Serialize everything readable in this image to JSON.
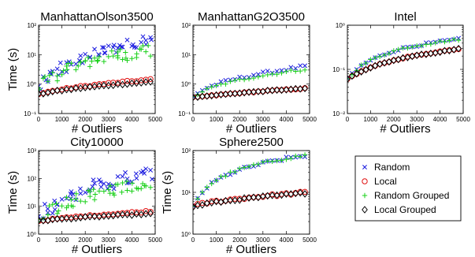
{
  "colors": {
    "Random": "#1a1adf",
    "Local": "#e01010",
    "Random Grouped": "#19d019",
    "Local Grouped": "#000000"
  },
  "legend": {
    "items": [
      {
        "label": "Random",
        "marker": "x"
      },
      {
        "label": "Local",
        "marker": "o"
      },
      {
        "label": "Random Grouped",
        "marker": "+"
      },
      {
        "label": "Local Grouped",
        "marker": "d"
      }
    ]
  },
  "chart_data": [
    {
      "type": "scatter",
      "title": "ManhattanOlson3500",
      "xlabel": "# Outliers",
      "ylabel": "Time (s)",
      "xlim": [
        0,
        5000
      ],
      "ylim": [
        0.1,
        100
      ],
      "yscale": "log",
      "xticks": [
        "0",
        "1000",
        "2000",
        "3000",
        "4000",
        "5000"
      ],
      "yticks": [
        {
          "v": 0.1,
          "label": "10⁻¹"
        },
        {
          "v": 1,
          "label": "10⁰"
        },
        {
          "v": 10,
          "label": "10¹"
        },
        {
          "v": 100,
          "label": "10²"
        }
      ],
      "x": [
        0,
        200,
        400,
        600,
        800,
        1000,
        1200,
        1400,
        1600,
        1800,
        2000,
        2200,
        2400,
        2600,
        2800,
        3000,
        3200,
        3400,
        3600,
        3800,
        4000,
        4200,
        4400,
        4600,
        4800
      ],
      "series": [
        {
          "name": "Random",
          "marker": "x",
          "values": [
            0.75,
            1.2,
            1.6,
            2.1,
            2.6,
            3.3,
            4.0,
            4.8,
            5.8,
            6.8,
            8.0,
            9.2,
            10.5,
            12,
            13.5,
            15,
            16.5,
            18,
            20,
            22,
            24,
            26,
            28,
            31,
            35
          ],
          "spread": 0.35
        },
        {
          "name": "Local",
          "marker": "o",
          "values": [
            0.45,
            0.5,
            0.55,
            0.58,
            0.62,
            0.66,
            0.7,
            0.74,
            0.78,
            0.82,
            0.86,
            0.9,
            0.94,
            0.98,
            1.02,
            1.06,
            1.1,
            1.14,
            1.18,
            1.22,
            1.26,
            1.3,
            1.34,
            1.38,
            1.42
          ],
          "spread": 0.05
        },
        {
          "name": "Random Grouped",
          "marker": "+",
          "values": [
            0.7,
            1.0,
            1.3,
            1.7,
            2.1,
            2.5,
            3.0,
            3.5,
            4.0,
            4.6,
            5.2,
            5.8,
            6.4,
            7.0,
            7.6,
            8.2,
            8.8,
            9.4,
            10,
            10.6,
            11.2,
            11.8,
            12.4,
            13,
            13.6
          ],
          "spread": 0.45
        },
        {
          "name": "Local Grouped",
          "marker": "d",
          "values": [
            0.45,
            0.48,
            0.52,
            0.55,
            0.58,
            0.61,
            0.64,
            0.67,
            0.7,
            0.73,
            0.76,
            0.79,
            0.82,
            0.85,
            0.88,
            0.91,
            0.94,
            0.97,
            1.0,
            1.03,
            1.06,
            1.09,
            1.12,
            1.15,
            1.18
          ],
          "spread": 0.04
        }
      ]
    },
    {
      "type": "scatter",
      "title": "ManhattanG2O3500",
      "xlabel": "# Outliers",
      "ylabel": "",
      "xlim": [
        0,
        5000
      ],
      "ylim": [
        0.1,
        100
      ],
      "yscale": "log",
      "xticks": [
        "0",
        "1000",
        "2000",
        "3000",
        "4000",
        "5000"
      ],
      "yticks": [
        {
          "v": 0.1,
          "label": "10⁻¹"
        },
        {
          "v": 1,
          "label": "10⁰"
        },
        {
          "v": 10,
          "label": "10¹"
        },
        {
          "v": 100,
          "label": "10²"
        }
      ],
      "x": [
        0,
        200,
        400,
        600,
        800,
        1000,
        1200,
        1400,
        1600,
        1800,
        2000,
        2200,
        2400,
        2600,
        2800,
        3000,
        3200,
        3400,
        3600,
        3800,
        4000,
        4200,
        4400,
        4600,
        4800
      ],
      "series": [
        {
          "name": "Random",
          "marker": "x",
          "values": [
            0.38,
            0.5,
            0.62,
            0.74,
            0.86,
            0.98,
            1.1,
            1.22,
            1.35,
            1.48,
            1.6,
            1.75,
            1.9,
            2.05,
            2.2,
            2.35,
            2.5,
            2.65,
            2.8,
            3.0,
            3.2,
            3.4,
            3.6,
            3.8,
            4.0
          ],
          "spread": 0.1
        },
        {
          "name": "Local",
          "marker": "o",
          "values": [
            0.35,
            0.36,
            0.38,
            0.39,
            0.41,
            0.42,
            0.44,
            0.45,
            0.47,
            0.48,
            0.5,
            0.51,
            0.53,
            0.54,
            0.56,
            0.57,
            0.59,
            0.6,
            0.62,
            0.63,
            0.65,
            0.66,
            0.68,
            0.69,
            0.71
          ],
          "spread": 0.03
        },
        {
          "name": "Random Grouped",
          "marker": "+",
          "values": [
            0.36,
            0.46,
            0.56,
            0.66,
            0.76,
            0.86,
            0.96,
            1.06,
            1.16,
            1.27,
            1.38,
            1.49,
            1.6,
            1.72,
            1.84,
            1.96,
            2.08,
            2.2,
            2.33,
            2.46,
            2.6,
            2.74,
            2.88,
            3.02,
            3.16
          ],
          "spread": 0.08
        },
        {
          "name": "Local Grouped",
          "marker": "d",
          "values": [
            0.35,
            0.36,
            0.38,
            0.39,
            0.41,
            0.42,
            0.44,
            0.45,
            0.47,
            0.48,
            0.5,
            0.51,
            0.53,
            0.54,
            0.56,
            0.57,
            0.59,
            0.6,
            0.62,
            0.63,
            0.65,
            0.66,
            0.68,
            0.69,
            0.71
          ],
          "spread": 0.02
        }
      ]
    },
    {
      "type": "scatter",
      "title": "Intel",
      "xlabel": "# Outliers",
      "ylabel": "",
      "xlim": [
        0,
        5000
      ],
      "ylim": [
        0.01,
        1
      ],
      "yscale": "log",
      "xticks": [
        "0",
        "1000",
        "2000",
        "3000",
        "4000",
        "5000"
      ],
      "yticks": [
        {
          "v": 0.01,
          "label": "10⁻²"
        },
        {
          "v": 0.1,
          "label": "10⁻¹"
        },
        {
          "v": 1,
          "label": "10⁰"
        }
      ],
      "x": [
        0,
        200,
        400,
        600,
        800,
        1000,
        1200,
        1400,
        1600,
        1800,
        2000,
        2200,
        2400,
        2600,
        2800,
        3000,
        3200,
        3400,
        3600,
        3800,
        4000,
        4200,
        4400,
        4600,
        4800
      ],
      "series": [
        {
          "name": "Random",
          "marker": "x",
          "values": [
            0.06,
            0.08,
            0.1,
            0.12,
            0.14,
            0.16,
            0.18,
            0.2,
            0.22,
            0.24,
            0.26,
            0.28,
            0.3,
            0.32,
            0.33,
            0.35,
            0.36,
            0.38,
            0.39,
            0.41,
            0.42,
            0.44,
            0.45,
            0.46,
            0.48
          ],
          "spread": 0.05
        },
        {
          "name": "Local",
          "marker": "o",
          "values": [
            0.06,
            0.07,
            0.08,
            0.09,
            0.1,
            0.11,
            0.12,
            0.13,
            0.14,
            0.15,
            0.16,
            0.17,
            0.18,
            0.19,
            0.2,
            0.21,
            0.22,
            0.22,
            0.23,
            0.24,
            0.25,
            0.26,
            0.27,
            0.28,
            0.29
          ],
          "spread": 0.02
        },
        {
          "name": "Random Grouped",
          "marker": "+",
          "values": [
            0.06,
            0.08,
            0.1,
            0.12,
            0.14,
            0.16,
            0.18,
            0.2,
            0.22,
            0.24,
            0.26,
            0.28,
            0.3,
            0.32,
            0.33,
            0.35,
            0.36,
            0.38,
            0.39,
            0.41,
            0.42,
            0.44,
            0.45,
            0.46,
            0.48
          ],
          "spread": 0.05
        },
        {
          "name": "Local Grouped",
          "marker": "d",
          "values": [
            0.06,
            0.07,
            0.08,
            0.09,
            0.1,
            0.11,
            0.12,
            0.13,
            0.14,
            0.15,
            0.16,
            0.17,
            0.18,
            0.19,
            0.2,
            0.21,
            0.22,
            0.22,
            0.23,
            0.24,
            0.25,
            0.26,
            0.27,
            0.28,
            0.29
          ],
          "spread": 0.02
        }
      ]
    },
    {
      "type": "scatter",
      "title": "City10000",
      "xlabel": "# Outliers",
      "ylabel": "Time (s)",
      "xlim": [
        0,
        5000
      ],
      "ylim": [
        1,
        1000
      ],
      "yscale": "log",
      "xticks": [
        "0",
        "1000",
        "2000",
        "3000",
        "4000",
        "5000"
      ],
      "yticks": [
        {
          "v": 1,
          "label": "10⁰"
        },
        {
          "v": 10,
          "label": "10¹"
        },
        {
          "v": 100,
          "label": "10²"
        },
        {
          "v": 1000,
          "label": "10³"
        }
      ],
      "x": [
        0,
        200,
        400,
        600,
        800,
        1000,
        1200,
        1400,
        1600,
        1800,
        2000,
        2200,
        2400,
        2600,
        2800,
        3000,
        3200,
        3400,
        3600,
        3800,
        4000,
        4200,
        4400,
        4600,
        4800
      ],
      "series": [
        {
          "name": "Random",
          "marker": "x",
          "values": [
            3,
            5,
            7,
            9,
            12,
            15,
            18,
            22,
            26,
            30,
            35,
            40,
            46,
            52,
            58,
            65,
            72,
            80,
            88,
            96,
            105,
            115,
            125,
            135,
            150
          ],
          "spread": 0.5
        },
        {
          "name": "Local",
          "marker": "o",
          "values": [
            3,
            3.1,
            3.3,
            3.4,
            3.6,
            3.7,
            3.9,
            4,
            4.2,
            4.3,
            4.5,
            4.6,
            4.8,
            4.9,
            5.1,
            5.2,
            5.4,
            5.5,
            5.7,
            5.8,
            6,
            6.1,
            6.3,
            6.5,
            6.7
          ],
          "spread": 0.05
        },
        {
          "name": "Random Grouped",
          "marker": "+",
          "values": [
            3,
            4.5,
            6,
            7.5,
            9,
            11,
            13,
            15,
            17,
            19,
            21,
            23,
            26,
            29,
            32,
            35,
            38,
            41,
            44,
            47,
            50,
            53,
            56,
            59,
            62
          ],
          "spread": 0.5
        },
        {
          "name": "Local Grouped",
          "marker": "d",
          "values": [
            3,
            3.1,
            3.2,
            3.3,
            3.4,
            3.5,
            3.6,
            3.7,
            3.8,
            3.9,
            4,
            4.1,
            4.2,
            4.3,
            4.4,
            4.5,
            4.6,
            4.7,
            4.8,
            4.9,
            5,
            5.1,
            5.2,
            5.3,
            5.4
          ],
          "spread": 0.04
        }
      ]
    },
    {
      "type": "scatter",
      "title": "Sphere2500",
      "xlabel": "# Outliers",
      "ylabel": "Time (s)",
      "xlim": [
        0,
        5000
      ],
      "ylim": [
        1,
        100
      ],
      "yscale": "log",
      "xticks": [
        "0",
        "1000",
        "2000",
        "3000",
        "4000",
        "5000"
      ],
      "yticks": [
        {
          "v": 1,
          "label": "10⁰"
        },
        {
          "v": 10,
          "label": "10¹"
        },
        {
          "v": 100,
          "label": "10²"
        }
      ],
      "x": [
        0,
        200,
        400,
        600,
        800,
        1000,
        1200,
        1400,
        1600,
        1800,
        2000,
        2200,
        2400,
        2600,
        2800,
        3000,
        3200,
        3400,
        3600,
        3800,
        4000,
        4200,
        4400,
        4600,
        4800
      ],
      "series": [
        {
          "name": "Random",
          "marker": "x",
          "values": [
            4.5,
            7,
            10,
            13,
            16,
            19,
            22,
            25,
            28,
            31,
            34,
            37,
            40,
            43,
            46,
            49,
            52,
            55,
            58,
            61,
            64,
            67,
            70,
            73,
            76
          ],
          "spread": 0.08
        },
        {
          "name": "Local",
          "marker": "o",
          "values": [
            4.5,
            5,
            5.3,
            5.6,
            5.9,
            6.1,
            6.3,
            6.5,
            6.7,
            6.9,
            7.1,
            7.3,
            7.5,
            7.7,
            7.9,
            8.1,
            8.3,
            8.5,
            8.7,
            8.9,
            9.1,
            9.3,
            9.5,
            9.7,
            9.9
          ],
          "spread": 0.06
        },
        {
          "name": "Random Grouped",
          "marker": "+",
          "values": [
            4.5,
            7.2,
            10.3,
            13.4,
            16.5,
            19.6,
            22.7,
            25.8,
            28.9,
            32,
            35,
            38,
            41,
            44,
            47,
            50,
            53,
            56,
            59,
            62,
            65,
            68,
            71,
            74,
            77
          ],
          "spread": 0.06
        },
        {
          "name": "Local Grouped",
          "marker": "d",
          "values": [
            4.5,
            4.8,
            5.1,
            5.4,
            5.6,
            5.8,
            6,
            6.2,
            6.4,
            6.6,
            6.8,
            7,
            7.2,
            7.4,
            7.6,
            7.8,
            8,
            8.2,
            8.4,
            8.6,
            8.8,
            9,
            9.2,
            9.4,
            9.6
          ],
          "spread": 0.04
        }
      ]
    }
  ]
}
